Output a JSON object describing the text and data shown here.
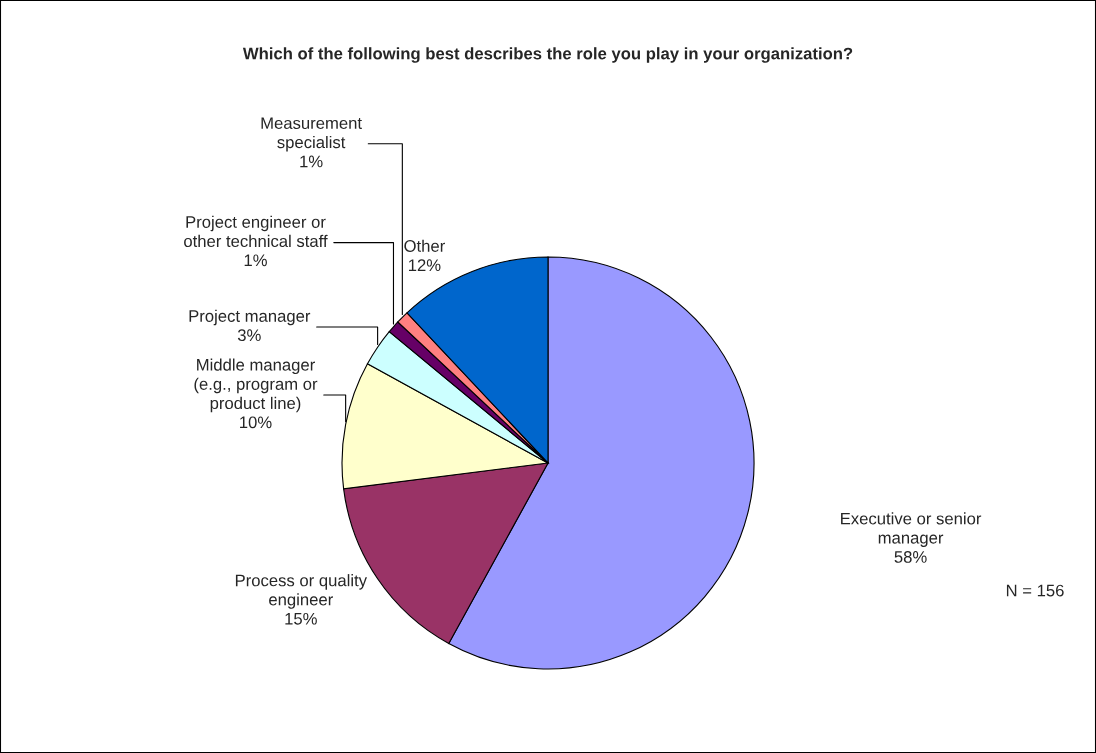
{
  "chart_data": {
    "type": "pie",
    "title": "Which of the following best describes the role you play in your organization?",
    "categories": [
      "Executive or senior\nmanager",
      "Process or quality\nengineer",
      "Middle manager\n(e.g., program or\nproduct line)",
      "Project manager",
      "Project engineer or\nother technical staff",
      "Measurement\nspecialist",
      "Other"
    ],
    "values": [
      58,
      15,
      10,
      3,
      1,
      1,
      12
    ],
    "value_labels": [
      "58%",
      "15%",
      "10%",
      "3%",
      "1%",
      "1%",
      "12%"
    ],
    "colors": [
      "#9999ff",
      "#993366",
      "#ffffcc",
      "#ccffff",
      "#660066",
      "#ff8080",
      "#0066cc"
    ],
    "annotations": [
      "N = 156"
    ]
  }
}
